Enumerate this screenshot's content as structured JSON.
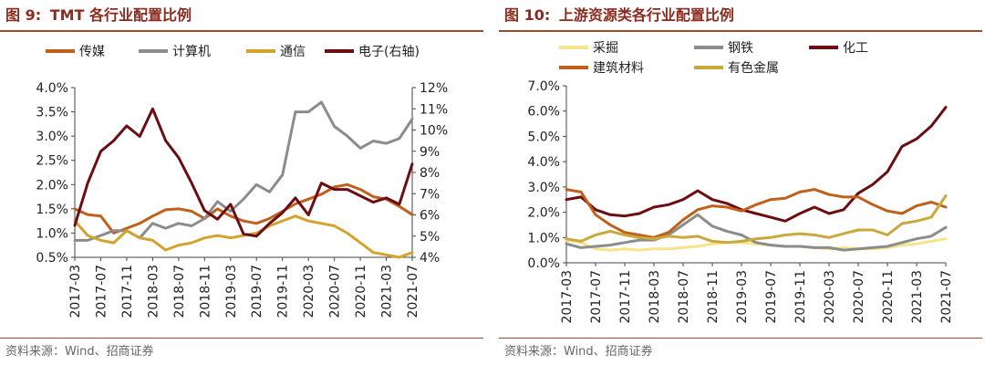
{
  "panels": [
    {
      "title_num": "图 9:",
      "title_text": "TMT 各行业配置比例",
      "source": "资料来源：Wind、招商证券"
    },
    {
      "title_num": "图 10:",
      "title_text": "上游资源类各行业配置比例",
      "source": "资料来源：Wind、招商证券"
    }
  ],
  "chart_data": [
    {
      "type": "line",
      "x": [
        "2017-03",
        "2017-05",
        "2017-07",
        "2017-09",
        "2017-11",
        "2018-01",
        "2018-03",
        "2018-05",
        "2018-07",
        "2018-09",
        "2018-11",
        "2019-01",
        "2019-03",
        "2019-05",
        "2019-07",
        "2019-09",
        "2019-11",
        "2020-01",
        "2020-03",
        "2020-05",
        "2020-07",
        "2020-09",
        "2020-11",
        "2021-01",
        "2021-03",
        "2021-05",
        "2021-07"
      ],
      "x_tick_labels": [
        "2017-03",
        "2017-07",
        "2017-11",
        "2018-03",
        "2018-07",
        "2018-11",
        "2019-03",
        "2019-07",
        "2019-11",
        "2020-03",
        "2020-07",
        "2020-11",
        "2021-03",
        "2021-07"
      ],
      "ylim_left": [
        0.5,
        4.0
      ],
      "yticks_left": [
        "0.5%",
        "1.0%",
        "1.5%",
        "2.0%",
        "2.5%",
        "3.0%",
        "3.5%",
        "4.0%"
      ],
      "ylim_right": [
        4,
        12
      ],
      "yticks_right": [
        "4%",
        "5%",
        "6%",
        "7%",
        "8%",
        "9%",
        "10%",
        "11%",
        "12%"
      ],
      "series": [
        {
          "name": "传媒",
          "axis": "left",
          "color": "#C0601C",
          "values": [
            1.5,
            1.38,
            1.35,
            1.0,
            1.1,
            1.2,
            1.35,
            1.48,
            1.5,
            1.45,
            1.3,
            1.5,
            1.35,
            1.25,
            1.2,
            1.3,
            1.45,
            1.6,
            1.7,
            1.8,
            1.95,
            2.0,
            1.9,
            1.75,
            1.7,
            1.55,
            1.38
          ]
        },
        {
          "name": "计算机",
          "axis": "left",
          "color": "#8C8C8C",
          "values": [
            0.85,
            0.85,
            0.95,
            1.05,
            1.05,
            0.9,
            1.2,
            1.1,
            1.2,
            1.15,
            1.3,
            1.65,
            1.45,
            1.7,
            2.0,
            1.85,
            2.2,
            3.5,
            3.5,
            3.7,
            3.2,
            3.0,
            2.75,
            2.9,
            2.85,
            2.95,
            3.35
          ]
        },
        {
          "name": "通信",
          "axis": "left",
          "color": "#D4A32E",
          "values": [
            1.25,
            0.95,
            0.85,
            0.8,
            1.05,
            0.9,
            0.85,
            0.65,
            0.75,
            0.8,
            0.9,
            0.95,
            0.9,
            0.95,
            1.0,
            1.15,
            1.25,
            1.35,
            1.25,
            1.2,
            1.15,
            1.0,
            0.8,
            0.6,
            0.55,
            0.5,
            0.6
          ]
        },
        {
          "name": "电子(右轴)",
          "axis": "right",
          "color": "#6B0E12",
          "values": [
            5.5,
            7.5,
            9.0,
            9.5,
            10.2,
            9.7,
            11.0,
            9.5,
            8.7,
            7.5,
            6.2,
            5.8,
            6.5,
            5.1,
            5.0,
            5.6,
            6.1,
            6.8,
            6.0,
            7.5,
            7.2,
            7.2,
            6.9,
            6.6,
            6.8,
            6.5,
            8.4
          ]
        }
      ]
    },
    {
      "type": "line",
      "x": [
        "2017-03",
        "2017-05",
        "2017-07",
        "2017-09",
        "2017-11",
        "2018-01",
        "2018-03",
        "2018-05",
        "2018-07",
        "2018-09",
        "2018-11",
        "2019-01",
        "2019-03",
        "2019-05",
        "2019-07",
        "2019-09",
        "2019-11",
        "2020-01",
        "2020-03",
        "2020-05",
        "2020-07",
        "2020-09",
        "2020-11",
        "2021-01",
        "2021-03",
        "2021-05",
        "2021-07"
      ],
      "x_tick_labels": [
        "2017-03",
        "2017-07",
        "2017-11",
        "2018-03",
        "2018-07",
        "2018-11",
        "2019-03",
        "2019-07",
        "2019-11",
        "2020-03",
        "2020-07",
        "2020-11",
        "2021-03",
        "2021-07"
      ],
      "ylim": [
        0.0,
        7.0
      ],
      "yticks": [
        "0.0%",
        "1.0%",
        "2.0%",
        "3.0%",
        "4.0%",
        "5.0%",
        "6.0%",
        "7.0%"
      ],
      "series": [
        {
          "name": "采掘",
          "color": "#F5E48A",
          "values": [
            0.9,
            0.8,
            0.55,
            0.5,
            0.55,
            0.5,
            0.55,
            0.55,
            0.6,
            0.65,
            0.75,
            0.8,
            0.8,
            0.75,
            0.7,
            0.65,
            0.65,
            0.6,
            0.55,
            0.6,
            0.55,
            0.55,
            0.6,
            0.7,
            0.75,
            0.85,
            0.95
          ]
        },
        {
          "name": "钢铁",
          "color": "#8C8C8C",
          "values": [
            0.75,
            0.6,
            0.65,
            0.7,
            0.8,
            0.9,
            0.9,
            1.1,
            1.5,
            1.9,
            1.45,
            1.25,
            1.1,
            0.8,
            0.7,
            0.65,
            0.65,
            0.6,
            0.6,
            0.5,
            0.55,
            0.6,
            0.65,
            0.8,
            0.95,
            1.05,
            1.4
          ]
        },
        {
          "name": "化工",
          "color": "#6B0E12",
          "values": [
            2.5,
            2.6,
            2.1,
            1.9,
            1.85,
            1.95,
            2.2,
            2.3,
            2.5,
            2.85,
            2.5,
            2.35,
            2.1,
            1.95,
            1.8,
            1.65,
            1.95,
            2.2,
            1.95,
            2.1,
            2.75,
            3.1,
            3.6,
            4.6,
            4.9,
            5.4,
            6.15
          ]
        },
        {
          "name": "建筑材料",
          "color": "#C0601C",
          "values": [
            2.9,
            2.8,
            1.9,
            1.5,
            1.2,
            1.1,
            1.0,
            1.2,
            1.7,
            2.1,
            2.25,
            2.2,
            2.05,
            2.3,
            2.5,
            2.55,
            2.8,
            2.9,
            2.7,
            2.6,
            2.6,
            2.3,
            2.05,
            1.95,
            2.25,
            2.4,
            2.2
          ]
        },
        {
          "name": "有色金属",
          "color": "#C9A83C",
          "values": [
            0.95,
            0.85,
            1.1,
            1.25,
            1.1,
            1.0,
            0.95,
            1.05,
            1.0,
            1.05,
            0.85,
            0.8,
            0.85,
            0.95,
            1.0,
            1.1,
            1.15,
            1.1,
            1.0,
            1.15,
            1.3,
            1.3,
            1.1,
            1.55,
            1.65,
            1.8,
            2.65
          ]
        }
      ]
    }
  ]
}
